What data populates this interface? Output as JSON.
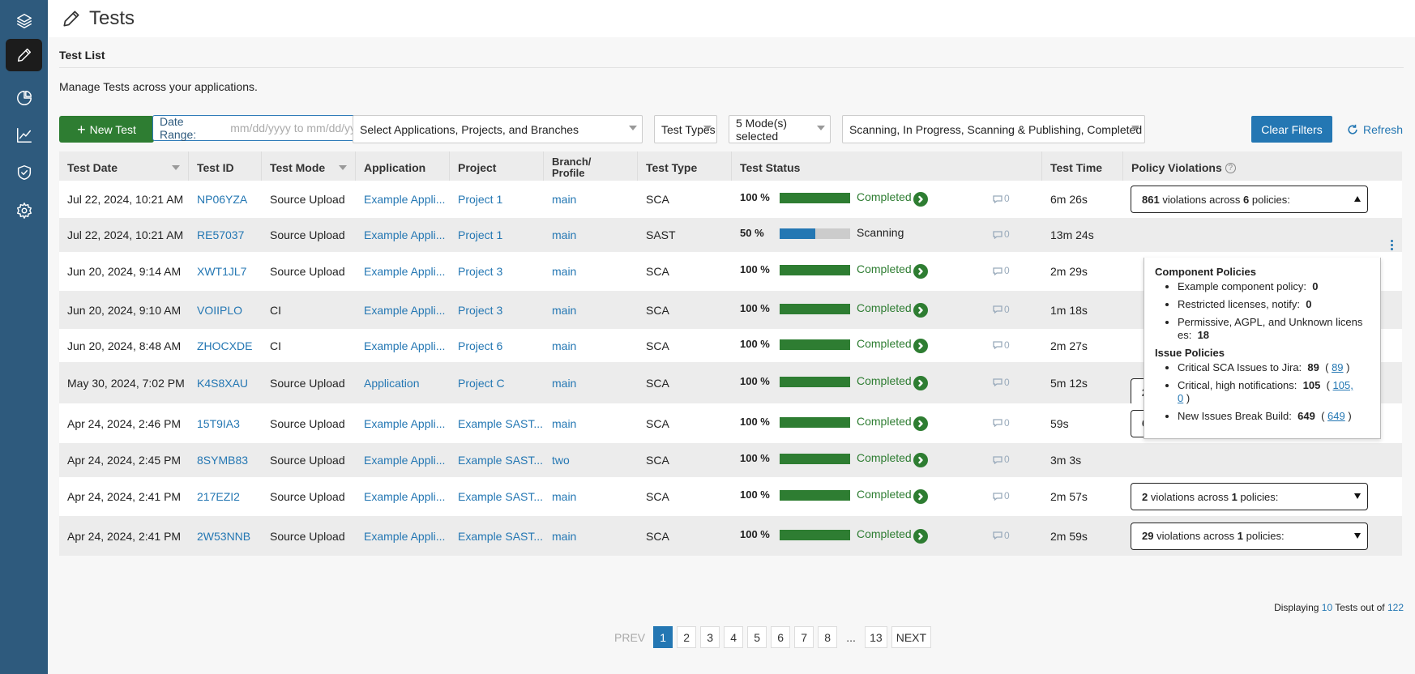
{
  "sidebar": {
    "items": [
      {
        "icon": "layers-icon"
      },
      {
        "icon": "pencil-icon",
        "active": true
      },
      {
        "icon": "pie-chart-icon"
      },
      {
        "icon": "line-chart-icon"
      },
      {
        "icon": "shield-check-icon"
      },
      {
        "icon": "gear-icon"
      }
    ]
  },
  "header": {
    "title": "Tests"
  },
  "page": {
    "section_title": "Test List",
    "subtitle": "Manage Tests across your applications."
  },
  "filters": {
    "new_test_label": "New Test",
    "date_range_label": "Date Range:",
    "date_range_placeholder": "mm/dd/yyyy to mm/dd/yyyy",
    "applications": "Select Applications, Projects, and Branches",
    "test_types": "Test Types",
    "modes": "5 Mode(s) selected",
    "statuses": "Scanning, In Progress, Scanning & Publishing, Completed",
    "clear_label": "Clear Filters",
    "refresh_label": "Refresh"
  },
  "columns": {
    "test_date": "Test Date",
    "test_id": "Test ID",
    "test_mode": "Test Mode",
    "application": "Application",
    "project": "Project",
    "branch_1": "Branch/",
    "branch_2": "Profile",
    "test_type": "Test Type",
    "test_status": "Test Status",
    "test_time": "Test Time",
    "policy_violations": "Policy Violations"
  },
  "rows": [
    {
      "date": "Jul 22, 2024, 10:21 AM",
      "id": "NP06YZA",
      "mode": "Source Upload",
      "app": "Example Appli...",
      "project": "Project 1",
      "branch": "main",
      "type": "SCA",
      "pct": "100 %",
      "progress": 1.0,
      "status": "Completed",
      "comments": "0",
      "time": "6m 26s",
      "viol_count": "861",
      "viol_mid": " violations across ",
      "viol_pol": "6",
      "viol_end": " policies:",
      "open": true
    },
    {
      "date": "Jul 22, 2024, 10:21 AM",
      "id": "RE57037",
      "mode": "Source Upload",
      "app": "Example Appli...",
      "project": "Project 1",
      "branch": "main",
      "type": "SAST",
      "pct": "50 %",
      "progress": 0.5,
      "status": "Scanning",
      "comments": "0",
      "time": "13m 24s"
    },
    {
      "date": "Jun 20, 2024, 9:14 AM",
      "id": "XWT1JL7",
      "mode": "Source Upload",
      "app": "Example Appli...",
      "project": "Project 3",
      "branch": "main",
      "type": "SCA",
      "pct": "100 %",
      "progress": 1.0,
      "status": "Completed",
      "comments": "0",
      "time": "2m 29s"
    },
    {
      "date": "Jun 20, 2024, 9:10 AM",
      "id": "VOIIPLO",
      "mode": "CI",
      "app": "Example Appli...",
      "project": "Project 3",
      "branch": "main",
      "type": "SCA",
      "pct": "100 %",
      "progress": 1.0,
      "status": "Completed",
      "comments": "0",
      "time": "1m 18s"
    },
    {
      "date": "Jun 20, 2024, 8:48 AM",
      "id": "ZHOCXDE",
      "mode": "CI",
      "app": "Example Appli...",
      "project": "Project 6",
      "branch": "main",
      "type": "SCA",
      "pct": "100 %",
      "progress": 1.0,
      "status": "Completed",
      "comments": "0",
      "time": "2m 27s"
    },
    {
      "date": "May 30, 2024, 7:02 PM",
      "id": "K4S8XAU",
      "mode": "Source Upload",
      "app": "Application",
      "project": "Project C",
      "branch": "main",
      "type": "SCA",
      "pct": "100 %",
      "progress": 1.0,
      "status": "Completed",
      "comments": "0",
      "time": "5m 12s",
      "viol_count": "28",
      "viol_mid": " violations across ",
      "viol_pol": "1",
      "viol_end": " policies:",
      "partial": true
    },
    {
      "date": "Apr 24, 2024, 2:46 PM",
      "id": "15T9IA3",
      "mode": "Source Upload",
      "app": "Example Appli...",
      "project": "Example SAST...",
      "branch": "main",
      "type": "SCA",
      "pct": "100 %",
      "progress": 1.0,
      "status": "Completed",
      "comments": "0",
      "time": "59s",
      "viol_count": "66",
      "viol_mid": " violations across ",
      "viol_pol": "1",
      "viol_end": " policies:"
    },
    {
      "date": "Apr 24, 2024, 2:45 PM",
      "id": "8SYMB83",
      "mode": "Source Upload",
      "app": "Example Appli...",
      "project": "Example SAST...",
      "branch": "two",
      "type": "SCA",
      "pct": "100 %",
      "progress": 1.0,
      "status": "Completed",
      "comments": "0",
      "time": "3m 3s"
    },
    {
      "date": "Apr 24, 2024, 2:41 PM",
      "id": "217EZI2",
      "mode": "Source Upload",
      "app": "Example Appli...",
      "project": "Example SAST...",
      "branch": "main",
      "type": "SCA",
      "pct": "100 %",
      "progress": 1.0,
      "status": "Completed",
      "comments": "0",
      "time": "2m 57s",
      "viol_count": "2",
      "viol_mid": " violations across ",
      "viol_pol": "1",
      "viol_end": " policies:"
    },
    {
      "date": "Apr 24, 2024, 2:41 PM",
      "id": "2W53NNB",
      "mode": "Source Upload",
      "app": "Example Appli...",
      "project": "Example SAST...",
      "branch": "main",
      "type": "SCA",
      "pct": "100 %",
      "progress": 1.0,
      "status": "Completed",
      "comments": "0",
      "time": "2m 59s",
      "viol_count": "29",
      "viol_mid": " violations across ",
      "viol_pol": "1",
      "viol_end": " policies:"
    }
  ],
  "popup": {
    "component_title": "Component Policies",
    "c1": "Example component policy:",
    "c1v": "0",
    "c2": "Restricted licenses, notify:",
    "c2v": "0",
    "c3a": "Permissive, AGPL, and Unknown licens",
    "c3b": "es:",
    "c3v": "18",
    "issue_title": "Issue Policies",
    "i1": "Critical SCA Issues to Jira:",
    "i1v": "89",
    "i1open": "(",
    "i1link": "89",
    "i1close": ")",
    "i2": "Critical, high notifications:",
    "i2v": "105",
    "i2open": "(",
    "i2link": "105,",
    "i2link2": "0",
    "i2close": ")",
    "i3": "New Issues Break Build:",
    "i3v": "649",
    "i3open": "(",
    "i3link": "649",
    "i3close": ")"
  },
  "footer": {
    "displaying": "Displaying",
    "shown": "10",
    "tests_out_of": "Tests out of",
    "total": "122"
  },
  "pagination": {
    "prev": "PREV",
    "pages": [
      "1",
      "2",
      "3",
      "4",
      "5",
      "6",
      "7",
      "8"
    ],
    "ellipsis": "...",
    "last": "13",
    "next": "NEXT",
    "current": "1"
  },
  "colors": {
    "sidebar": "#2e5a7d",
    "primary": "#2477b3",
    "success": "#2e7d32",
    "scanning": "#2477b3"
  }
}
